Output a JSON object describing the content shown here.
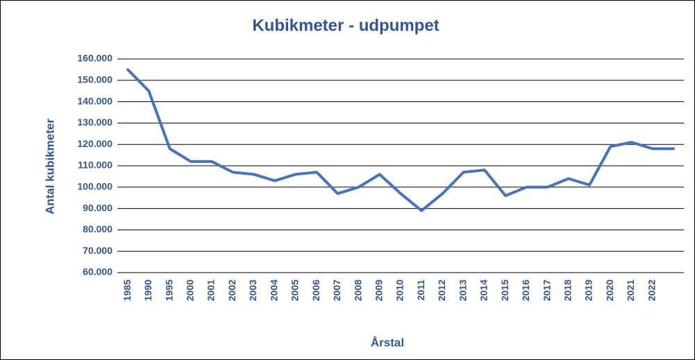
{
  "chart_data": {
    "type": "line",
    "title": "Kubikmeter - udpumpet",
    "y_label": "Antal kubikmeter",
    "x_label": "Årstal",
    "categories": [
      "1985",
      "1990",
      "1995",
      "2000",
      "2001",
      "2002",
      "2003",
      "2004",
      "2005",
      "2006",
      "2007",
      "2008",
      "2009",
      "2010",
      "2011",
      "2012",
      "2013",
      "2014",
      "2015",
      "2016",
      "2017",
      "2018",
      "2019",
      "2020",
      "2021",
      "2022",
      null
    ],
    "series": [
      {
        "name": "Kubikmeter",
        "color": "#4472c4",
        "values": [
          155000,
          145000,
          118000,
          112000,
          112000,
          107000,
          106000,
          103000,
          106000,
          107000,
          97000,
          100000,
          106000,
          97000,
          89000,
          97000,
          107000,
          108000,
          96000,
          100000,
          100000,
          104000,
          101000,
          119000,
          121000,
          118000,
          118000
        ]
      }
    ],
    "ylim": [
      60000,
      160000
    ],
    "yticks": [
      {
        "value": 60000,
        "label": "60.000"
      },
      {
        "value": 70000,
        "label": "70.000"
      },
      {
        "value": 80000,
        "label": "80.000"
      },
      {
        "value": 90000,
        "label": "90.000"
      },
      {
        "value": 100000,
        "label": "100.000"
      },
      {
        "value": 110000,
        "label": "110.000"
      },
      {
        "value": 120000,
        "label": "120.000"
      },
      {
        "value": 130000,
        "label": "130.000"
      },
      {
        "value": 140000,
        "label": "140.000"
      },
      {
        "value": 150000,
        "label": "150.000"
      },
      {
        "value": 160000,
        "label": "160.000"
      }
    ],
    "grid": true
  }
}
